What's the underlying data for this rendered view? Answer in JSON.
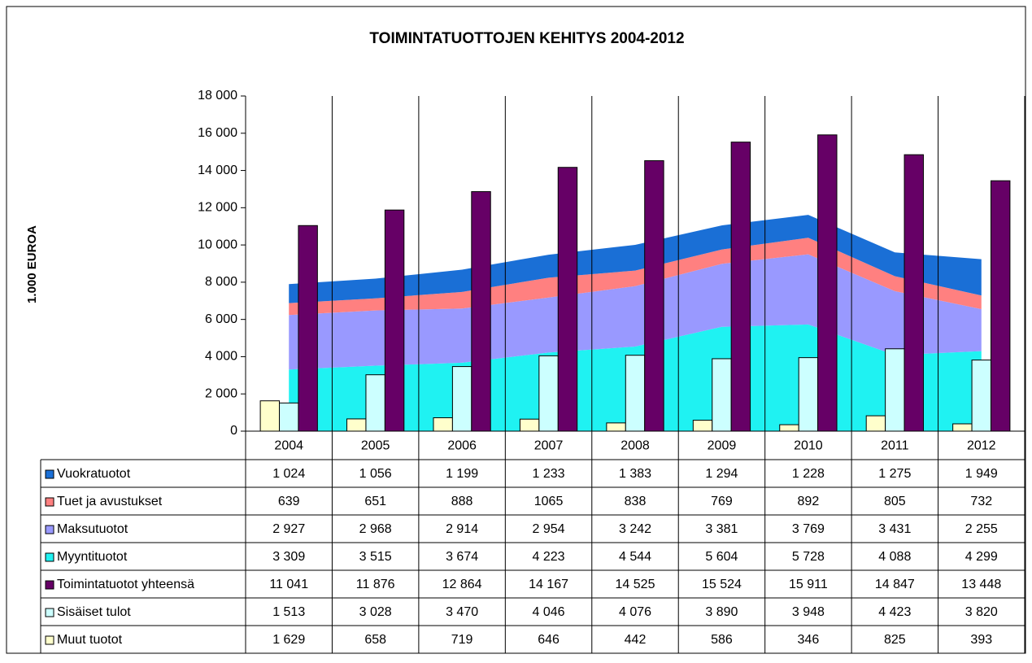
{
  "chart_data": {
    "type": "combo",
    "title": "TOIMINTATUOTTOJEN KEHITYS 2004-2012",
    "y_label": "1.000 EUROA",
    "categories": [
      "2004",
      "2005",
      "2006",
      "2007",
      "2008",
      "2009",
      "2010",
      "2011",
      "2012"
    ],
    "ylim": [
      0,
      18000
    ],
    "yticks": [
      0,
      {
        "value": 2000,
        "label": "2 000"
      },
      {
        "value": 4000,
        "label": "4 000"
      },
      {
        "value": 6000,
        "label": "6 000"
      },
      {
        "value": 8000,
        "label": "8 000"
      },
      {
        "value": 10000,
        "label": "10 000"
      },
      {
        "value": 12000,
        "label": "12 000"
      },
      {
        "value": 14000,
        "label": "14 000"
      },
      {
        "value": 16000,
        "label": "16 000"
      },
      {
        "value": 18000,
        "label": "18 000"
      }
    ],
    "series": [
      {
        "name": "Vuokratuotot",
        "type": "area",
        "color": "#1a6fd6",
        "values": [
          1024,
          1056,
          1199,
          1233,
          1383,
          1294,
          1228,
          1275,
          1949
        ],
        "value_labels": [
          "1 024",
          "1 056",
          "1 199",
          "1 233",
          "1 383",
          "1 294",
          "1 228",
          "1 275",
          "1 949"
        ]
      },
      {
        "name": "Tuet ja avustukset",
        "type": "area",
        "color": "#ff8080",
        "values": [
          639,
          651,
          888,
          1065,
          838,
          769,
          892,
          805,
          732
        ]
      },
      {
        "name": "Maksutuotot",
        "type": "area",
        "color": "#9999ff",
        "values": [
          2927,
          2968,
          2914,
          2954,
          3242,
          3381,
          3769,
          3431,
          2255
        ],
        "value_labels": [
          "2 927",
          "2 968",
          "2 914",
          "2 954",
          "3 242",
          "3 381",
          "3 769",
          "3 431",
          "2 255"
        ]
      },
      {
        "name": "Myyntituotot",
        "type": "area",
        "color": "#1ff2f2",
        "values": [
          3309,
          3515,
          3674,
          4223,
          4544,
          5604,
          5728,
          4088,
          4299
        ],
        "value_labels": [
          "3 309",
          "3 515",
          "3 674",
          "4 223",
          "4 544",
          "5 604",
          "5 728",
          "4 088",
          "4 299"
        ]
      },
      {
        "name": "Toimintatuotot yhteensä",
        "type": "bar",
        "color": "#660066",
        "values": [
          11041,
          11876,
          12864,
          14167,
          14525,
          15524,
          15911,
          14847,
          13448
        ],
        "value_labels": [
          "11 041",
          "11 876",
          "12 864",
          "14 167",
          "14 525",
          "15 524",
          "15 911",
          "14 847",
          "13 448"
        ]
      },
      {
        "name": "Sisäiset tulot",
        "type": "bar",
        "color": "#ccffff",
        "values": [
          1513,
          3028,
          3470,
          4046,
          4076,
          3890,
          3948,
          4423,
          3820
        ],
        "value_labels": [
          "1 513",
          "3 028",
          "3 470",
          "4 046",
          "4 076",
          "3 890",
          "3 948",
          "4 423",
          "3 820"
        ]
      },
      {
        "name": "Muut tuotot",
        "type": "bar",
        "color": "#ffffcc",
        "values": [
          1629,
          658,
          719,
          646,
          442,
          586,
          346,
          825,
          393
        ],
        "value_labels": [
          "1 629",
          "658",
          "719",
          "646",
          "442",
          "586",
          "346",
          "825",
          "393"
        ]
      }
    ]
  }
}
